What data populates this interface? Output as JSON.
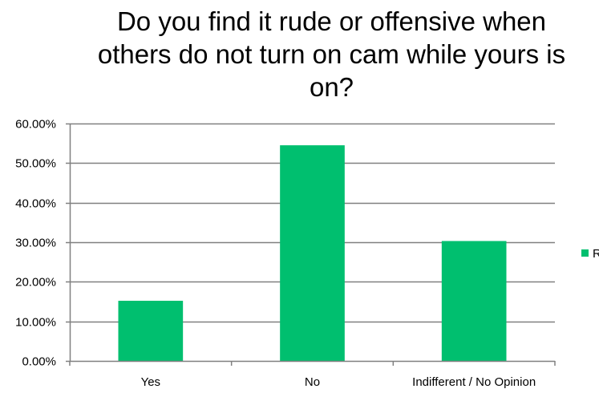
{
  "chart_data": {
    "type": "bar",
    "title_lines": [
      "Do you find it rude or offensive when",
      "others do not turn on cam while yours is",
      "on?"
    ],
    "categories": [
      "Yes",
      "No",
      "Indifferent / No Opinion"
    ],
    "series": [
      {
        "name": "R",
        "color": "#00BF6F",
        "values": [
          0.152,
          0.545,
          0.303
        ]
      }
    ],
    "ylim": [
      0,
      0.6
    ],
    "y_ticks": [
      {
        "value": 0.0,
        "label": "0.00%"
      },
      {
        "value": 0.1,
        "label": "10.00%"
      },
      {
        "value": 0.2,
        "label": "20.00%"
      },
      {
        "value": 0.3,
        "label": "30.00%"
      },
      {
        "value": 0.4,
        "label": "40.00%"
      },
      {
        "value": 0.5,
        "label": "50.00%"
      },
      {
        "value": 0.6,
        "label": "60.00%"
      }
    ],
    "grid": true,
    "grid_color": "#808080",
    "legend_position": "right",
    "xlabel": "",
    "ylabel": ""
  }
}
